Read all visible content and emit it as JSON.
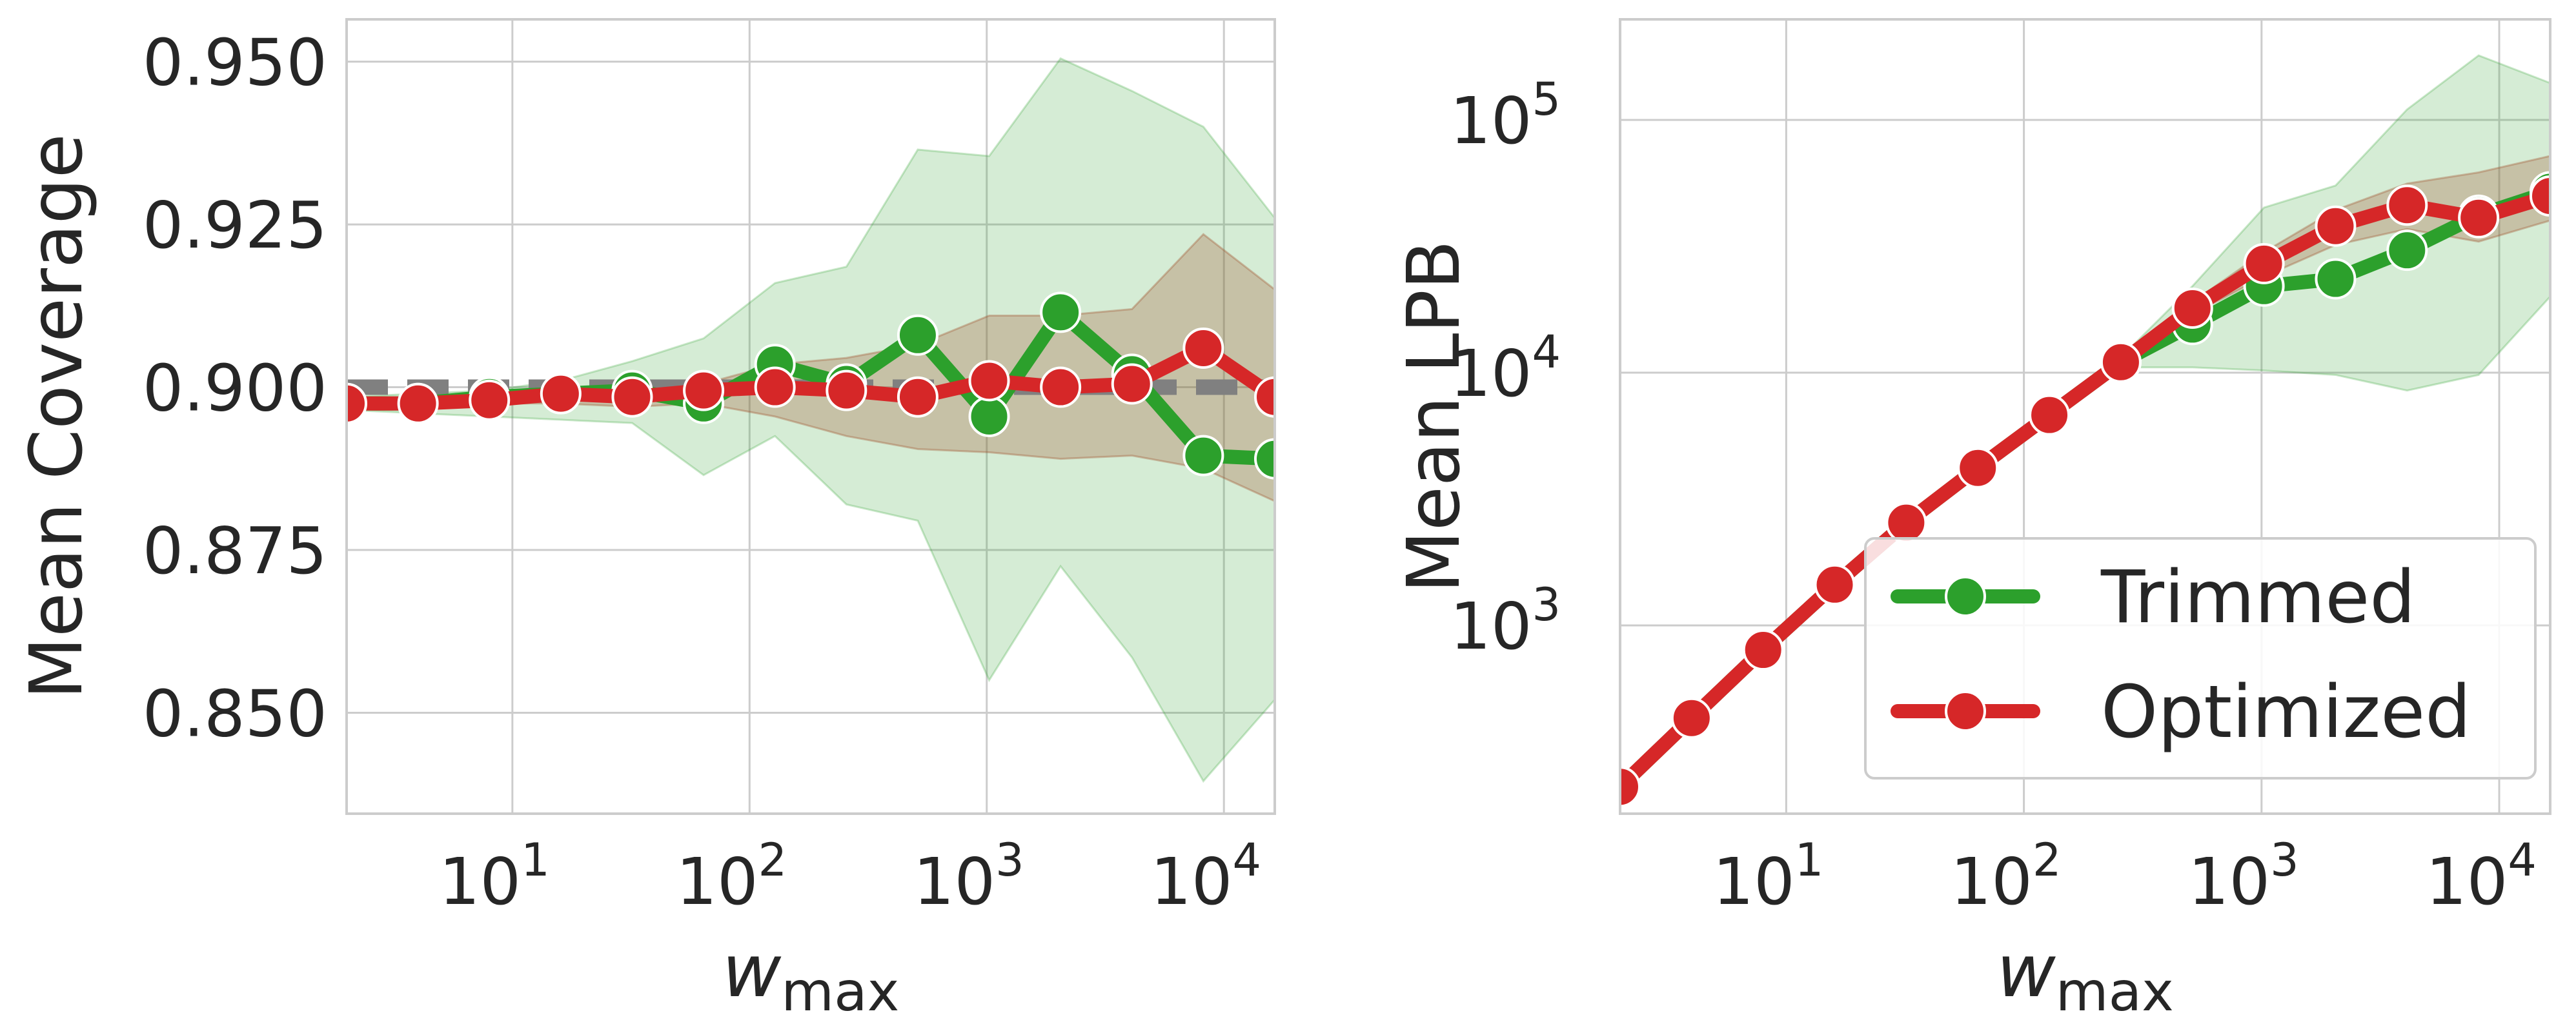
{
  "colors": {
    "trimmed": "#2ca02c",
    "optimized": "#d62728",
    "target": "#808080",
    "band_trimmed": "#2ca02c",
    "band_optimized": "#a0522d"
  },
  "chart_data": [
    {
      "type": "line",
      "xscale": "log",
      "xlim": [
        2,
        16384
      ],
      "ylim": [
        0.8345,
        0.9565
      ],
      "xticks": [
        {
          "value": 10,
          "base": "10",
          "exp": "1"
        },
        {
          "value": 100,
          "base": "10",
          "exp": "2"
        },
        {
          "value": 1000,
          "base": "10",
          "exp": "3"
        },
        {
          "value": 10000,
          "base": "10",
          "exp": "4"
        }
      ],
      "yticks": [
        {
          "value": 0.85,
          "label": "0.850"
        },
        {
          "value": 0.875,
          "label": "0.875"
        },
        {
          "value": 0.9,
          "label": "0.900"
        },
        {
          "value": 0.925,
          "label": "0.925"
        },
        {
          "value": 0.95,
          "label": "0.950"
        }
      ],
      "xlabel": {
        "main": "w",
        "sub": "max"
      },
      "ylabel": "Mean Coverage",
      "grid": true,
      "reference_line": {
        "y": 0.9,
        "style": "dashed"
      },
      "x": [
        2,
        4,
        8,
        16,
        32,
        64,
        128,
        256,
        512,
        1024,
        2048,
        4096,
        8192,
        16384
      ],
      "series": [
        {
          "key": "trimmed",
          "values": [
            0.8975,
            0.8975,
            0.8985,
            0.899,
            0.8995,
            0.8975,
            0.9035,
            0.9005,
            0.908,
            0.8955,
            0.9115,
            0.902,
            0.8895,
            0.889
          ],
          "band_lower": [
            0.8965,
            0.896,
            0.8955,
            0.895,
            0.8945,
            0.8865,
            0.8925,
            0.882,
            0.8795,
            0.855,
            0.8725,
            0.8585,
            0.8395,
            0.852
          ],
          "band_upper": [
            0.8985,
            0.899,
            0.8995,
            0.901,
            0.904,
            0.9075,
            0.916,
            0.9185,
            0.9365,
            0.9355,
            0.9505,
            0.9455,
            0.94,
            0.926
          ]
        },
        {
          "key": "optimized",
          "values": [
            0.8975,
            0.8975,
            0.898,
            0.899,
            0.8985,
            0.8995,
            0.9,
            0.8995,
            0.8985,
            0.901,
            0.9,
            0.9005,
            0.906,
            0.8985
          ],
          "band_lower": [
            0.897,
            0.897,
            0.8975,
            0.8975,
            0.897,
            0.8975,
            0.8955,
            0.8925,
            0.8905,
            0.89,
            0.889,
            0.8895,
            0.8875,
            0.8825
          ],
          "band_upper": [
            0.898,
            0.898,
            0.899,
            0.8995,
            0.9,
            0.9005,
            0.9035,
            0.9045,
            0.9065,
            0.911,
            0.911,
            0.912,
            0.9235,
            0.915
          ]
        }
      ]
    },
    {
      "type": "line",
      "xscale": "log",
      "yscale": "log",
      "xlim": [
        2,
        16384
      ],
      "ylim": [
        180,
        250000
      ],
      "xticks": [
        {
          "value": 10,
          "base": "10",
          "exp": "1"
        },
        {
          "value": 100,
          "base": "10",
          "exp": "2"
        },
        {
          "value": 1000,
          "base": "10",
          "exp": "3"
        },
        {
          "value": 10000,
          "base": "10",
          "exp": "4"
        }
      ],
      "yticks": [
        {
          "value": 1000,
          "base": "10",
          "exp": "3"
        },
        {
          "value": 10000,
          "base": "10",
          "exp": "4"
        },
        {
          "value": 100000,
          "base": "10",
          "exp": "5"
        }
      ],
      "xlabel": {
        "main": "w",
        "sub": "max"
      },
      "ylabel": "Mean LPB",
      "grid": true,
      "legend": {
        "position": "lower-right",
        "entries": [
          {
            "key": "trimmed",
            "label": "Trimmed"
          },
          {
            "key": "optimized",
            "label": "Optimized"
          }
        ]
      },
      "x": [
        2,
        4,
        8,
        16,
        32,
        64,
        128,
        256,
        512,
        1024,
        2048,
        4096,
        8192,
        16384
      ],
      "series": [
        {
          "key": "trimmed",
          "name": "Trimmed",
          "values": [
            230,
            430,
            800,
            1450,
            2550,
            4200,
            6800,
            11000,
            15500,
            22000,
            23500,
            30500,
            42000,
            52000
          ],
          "band_lower": [
            228,
            425,
            790,
            1430,
            2500,
            4100,
            6600,
            10500,
            10500,
            10200,
            9800,
            8500,
            9800,
            20000
          ],
          "band_upper": [
            232,
            435,
            810,
            1470,
            2600,
            4300,
            7000,
            11500,
            22000,
            45000,
            55000,
            110000,
            180000,
            140000
          ]
        },
        {
          "key": "optimized",
          "name": "Optimized",
          "values": [
            230,
            430,
            800,
            1450,
            2550,
            4200,
            6800,
            11000,
            18000,
            27000,
            38000,
            46000,
            41000,
            50000
          ],
          "band_lower": [
            228,
            425,
            790,
            1430,
            2500,
            4150,
            6700,
            10800,
            17000,
            24000,
            32000,
            37000,
            33000,
            40000
          ],
          "band_upper": [
            232,
            435,
            810,
            1470,
            2600,
            4250,
            6900,
            11200,
            19000,
            30000,
            44000,
            56000,
            62000,
            72000
          ]
        }
      ]
    }
  ]
}
